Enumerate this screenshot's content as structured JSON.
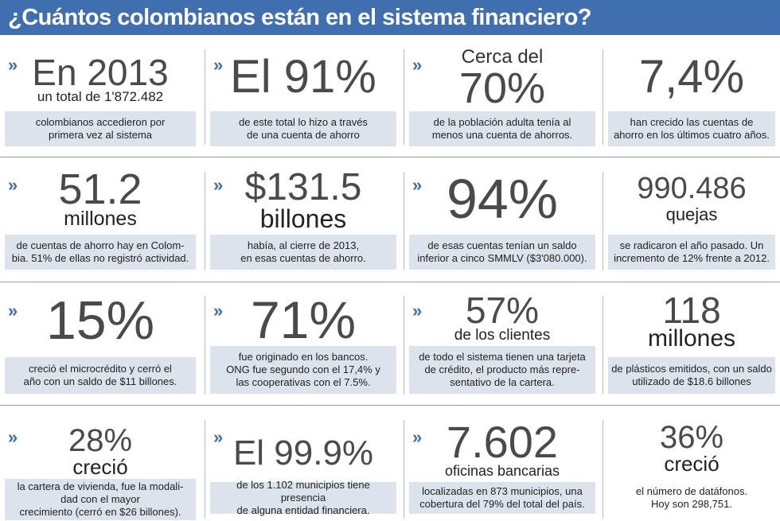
{
  "title": "¿Cuántos colombianos están en el sistema financiero?",
  "accent_color": "#3f6fae",
  "box_color": "#dce3ec",
  "bullet_icon": "double-chevron-right",
  "bullet_glyph": "»",
  "rows": [
    [
      {
        "big": "En 2013",
        "sub": "un total de 1'872.482",
        "desc": "colombianos accedieron por\nprimera vez al sistema"
      },
      {
        "big": "El 91%",
        "sub": "",
        "desc": "de este total lo hizo a través\nde una cuenta de ahorro"
      },
      {
        "pre": "Cerca del",
        "big": "70%",
        "sub": "",
        "desc": "de la población adulta tenía al\nmenos una cuenta de ahorros."
      },
      {
        "big": "7,4%",
        "sub": "",
        "desc": "han crecido las cuentas de\nahorro en los últimos cuatro años."
      }
    ],
    [
      {
        "big": "51.2",
        "sub": "millones",
        "desc": "de cuentas de ahorro hay en Colom-\nbia. 51% de ellas no registró actividad."
      },
      {
        "big": "$131.5",
        "sub": "billones",
        "desc": "había, al cierre de 2013,\nen esas cuentas de ahorro."
      },
      {
        "big": "94%",
        "sub": "",
        "desc": "de esas cuentas tenían un saldo\ninferior a cinco SMMLV ($3'080.000)."
      },
      {
        "big": "990.486",
        "sub": "quejas",
        "desc": "se radicaron el año pasado. Un\nincremento de 12% frente a 2012."
      }
    ],
    [
      {
        "big": "15%",
        "sub": "",
        "desc": "creció el microcrédito y cerró el\naño con un saldo de $11 billones."
      },
      {
        "big": "71%",
        "sub": "",
        "desc": "fue originado en los bancos.\nONG fue segundo con el 17,4% y\nlas cooperativas con el 7.5%."
      },
      {
        "big": "57%",
        "sub": "de los clientes",
        "desc": "de todo el sistema tienen una tarjeta\nde crédito, el producto más repre-\nsentativo de la cartera."
      },
      {
        "big": "118",
        "sub": "millones",
        "desc": "de plásticos emitidos, con un saldo\nutilizado de $18.6 billones"
      }
    ],
    [
      {
        "big": "28%",
        "sub": "creció",
        "desc": "la cartera de vivienda, fue la modali-\ndad con el mayor\ncrecimiento (cerró en $26 billones)."
      },
      {
        "big": "El 99.9%",
        "sub": "",
        "desc": "de los 1.102 municipios tiene presencia\nde alguna entidad financiera."
      },
      {
        "big": "7.602",
        "sub": "oficinas bancarias",
        "desc": "localizadas en 873 municipios, una\ncobertura del 79% del total del país."
      },
      {
        "big": "36%",
        "sub": "creció",
        "desc": "el número de datáfonos.\nHoy son 298,751."
      }
    ]
  ]
}
